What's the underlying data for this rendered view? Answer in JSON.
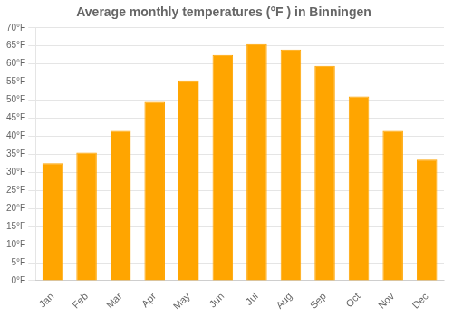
{
  "chart_data": {
    "type": "bar",
    "title": "Average monthly temperatures (°F ) in Binningen",
    "categories": [
      "Jan",
      "Feb",
      "Mar",
      "Apr",
      "May",
      "Jun",
      "Jul",
      "Aug",
      "Sep",
      "Oct",
      "Nov",
      "Dec"
    ],
    "values": [
      32.5,
      35.5,
      41.5,
      49.5,
      55.5,
      62.5,
      65.5,
      64.0,
      59.5,
      51.0,
      41.5,
      33.5
    ],
    "color": "#FFA500",
    "ylim": [
      0,
      70
    ],
    "yticks": [
      {
        "value": 0,
        "label": "0°F"
      },
      {
        "value": 5,
        "label": "5°F"
      },
      {
        "value": 10,
        "label": "10°F"
      },
      {
        "value": 15,
        "label": "15°F"
      },
      {
        "value": 20,
        "label": "20°F"
      },
      {
        "value": 25,
        "label": "25°F"
      },
      {
        "value": 30,
        "label": "30°F"
      },
      {
        "value": 35,
        "label": "35°F"
      },
      {
        "value": 40,
        "label": "40°F"
      },
      {
        "value": 45,
        "label": "45°F"
      },
      {
        "value": 50,
        "label": "50°F"
      },
      {
        "value": 55,
        "label": "55°F"
      },
      {
        "value": 60,
        "label": "60°F"
      },
      {
        "value": 65,
        "label": "65°F"
      },
      {
        "value": 70,
        "label": "70°F"
      }
    ],
    "grid": true
  }
}
